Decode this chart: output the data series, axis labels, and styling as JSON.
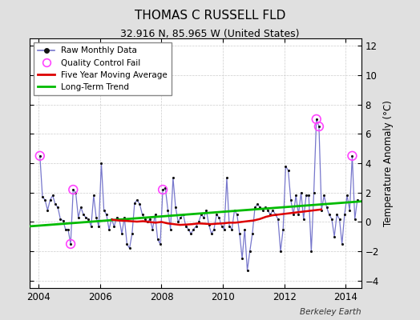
{
  "title": "THOMAS C RUSSELL FLD",
  "subtitle": "32.916 N, 85.965 W (United States)",
  "watermark": "Berkeley Earth",
  "ylabel": "Temperature Anomaly (°C)",
  "ylim": [
    -4.5,
    12.5
  ],
  "yticks": [
    -4,
    -2,
    0,
    2,
    4,
    6,
    8,
    10,
    12
  ],
  "xlim": [
    2003.7,
    2014.5
  ],
  "xticks": [
    2004,
    2006,
    2008,
    2010,
    2012,
    2014
  ],
  "bg_color": "#e0e0e0",
  "plot_bg": "#ffffff",
  "raw_color": "#7777cc",
  "dot_color": "#111111",
  "ma_color": "#dd0000",
  "trend_color": "#00bb00",
  "qc_color": "#ff44ff",
  "raw_data": [
    [
      2004.042,
      4.5
    ],
    [
      2004.125,
      1.7
    ],
    [
      2004.208,
      1.5
    ],
    [
      2004.292,
      0.8
    ],
    [
      2004.375,
      1.5
    ],
    [
      2004.458,
      1.8
    ],
    [
      2004.542,
      1.2
    ],
    [
      2004.625,
      1.0
    ],
    [
      2004.708,
      0.2
    ],
    [
      2004.792,
      0.1
    ],
    [
      2004.875,
      -0.5
    ],
    [
      2004.958,
      -0.5
    ],
    [
      2005.042,
      -1.5
    ],
    [
      2005.125,
      2.2
    ],
    [
      2005.208,
      2.0
    ],
    [
      2005.292,
      0.3
    ],
    [
      2005.375,
      1.0
    ],
    [
      2005.458,
      0.5
    ],
    [
      2005.542,
      0.3
    ],
    [
      2005.625,
      0.2
    ],
    [
      2005.708,
      -0.3
    ],
    [
      2005.792,
      1.8
    ],
    [
      2005.875,
      0.3
    ],
    [
      2005.958,
      -0.3
    ],
    [
      2006.042,
      4.0
    ],
    [
      2006.125,
      0.8
    ],
    [
      2006.208,
      0.5
    ],
    [
      2006.292,
      -0.5
    ],
    [
      2006.375,
      0.2
    ],
    [
      2006.458,
      -0.3
    ],
    [
      2006.542,
      0.3
    ],
    [
      2006.625,
      0.2
    ],
    [
      2006.708,
      -0.8
    ],
    [
      2006.792,
      0.3
    ],
    [
      2006.875,
      -1.5
    ],
    [
      2006.958,
      -1.8
    ],
    [
      2007.042,
      -0.8
    ],
    [
      2007.125,
      1.3
    ],
    [
      2007.208,
      1.5
    ],
    [
      2007.292,
      1.2
    ],
    [
      2007.375,
      0.5
    ],
    [
      2007.458,
      0.2
    ],
    [
      2007.542,
      0.0
    ],
    [
      2007.625,
      0.2
    ],
    [
      2007.708,
      -0.5
    ],
    [
      2007.792,
      0.5
    ],
    [
      2007.875,
      -1.2
    ],
    [
      2007.958,
      -1.5
    ],
    [
      2008.042,
      2.2
    ],
    [
      2008.125,
      2.3
    ],
    [
      2008.208,
      0.8
    ],
    [
      2008.292,
      -0.5
    ],
    [
      2008.375,
      3.0
    ],
    [
      2008.458,
      1.0
    ],
    [
      2008.542,
      0.0
    ],
    [
      2008.625,
      0.3
    ],
    [
      2008.708,
      0.5
    ],
    [
      2008.792,
      -0.3
    ],
    [
      2008.875,
      -0.5
    ],
    [
      2008.958,
      -0.8
    ],
    [
      2009.042,
      -0.5
    ],
    [
      2009.125,
      -0.3
    ],
    [
      2009.208,
      0.0
    ],
    [
      2009.292,
      0.5
    ],
    [
      2009.375,
      0.3
    ],
    [
      2009.458,
      0.8
    ],
    [
      2009.542,
      -0.2
    ],
    [
      2009.625,
      -0.8
    ],
    [
      2009.708,
      -0.5
    ],
    [
      2009.792,
      0.5
    ],
    [
      2009.875,
      0.3
    ],
    [
      2009.958,
      -0.3
    ],
    [
      2010.042,
      -0.5
    ],
    [
      2010.125,
      3.0
    ],
    [
      2010.208,
      -0.3
    ],
    [
      2010.292,
      -0.5
    ],
    [
      2010.375,
      0.8
    ],
    [
      2010.458,
      0.5
    ],
    [
      2010.542,
      -0.8
    ],
    [
      2010.625,
      -2.5
    ],
    [
      2010.708,
      -0.5
    ],
    [
      2010.792,
      -3.3
    ],
    [
      2010.875,
      -2.0
    ],
    [
      2010.958,
      -0.8
    ],
    [
      2011.042,
      1.0
    ],
    [
      2011.125,
      1.2
    ],
    [
      2011.208,
      1.0
    ],
    [
      2011.292,
      0.8
    ],
    [
      2011.375,
      1.0
    ],
    [
      2011.458,
      0.8
    ],
    [
      2011.542,
      0.5
    ],
    [
      2011.625,
      0.8
    ],
    [
      2011.708,
      0.5
    ],
    [
      2011.792,
      0.2
    ],
    [
      2011.875,
      -2.0
    ],
    [
      2011.958,
      -0.5
    ],
    [
      2012.042,
      3.8
    ],
    [
      2012.125,
      3.5
    ],
    [
      2012.208,
      1.5
    ],
    [
      2012.292,
      0.5
    ],
    [
      2012.375,
      1.8
    ],
    [
      2012.458,
      0.5
    ],
    [
      2012.542,
      2.0
    ],
    [
      2012.625,
      0.2
    ],
    [
      2012.708,
      1.8
    ],
    [
      2012.792,
      1.8
    ],
    [
      2012.875,
      -2.0
    ],
    [
      2012.958,
      2.0
    ],
    [
      2013.042,
      7.0
    ],
    [
      2013.125,
      6.5
    ],
    [
      2013.208,
      0.8
    ],
    [
      2013.292,
      1.8
    ],
    [
      2013.375,
      1.0
    ],
    [
      2013.458,
      0.5
    ],
    [
      2013.542,
      0.2
    ],
    [
      2013.625,
      -1.0
    ],
    [
      2013.708,
      0.5
    ],
    [
      2013.792,
      0.2
    ],
    [
      2013.875,
      -1.5
    ],
    [
      2013.958,
      0.5
    ],
    [
      2014.042,
      1.8
    ],
    [
      2014.125,
      0.8
    ],
    [
      2014.208,
      4.5
    ],
    [
      2014.292,
      0.2
    ],
    [
      2014.375,
      1.5
    ]
  ],
  "qc_fails": [
    [
      2004.042,
      4.5
    ],
    [
      2005.042,
      -1.5
    ],
    [
      2005.125,
      2.2
    ],
    [
      2008.042,
      2.2
    ],
    [
      2013.042,
      7.0
    ],
    [
      2013.125,
      6.5
    ],
    [
      2014.208,
      4.5
    ]
  ],
  "moving_avg": [
    [
      2006.4,
      0.15
    ],
    [
      2006.6,
      0.1
    ],
    [
      2006.8,
      0.08
    ],
    [
      2007.0,
      0.05
    ],
    [
      2007.2,
      0.02
    ],
    [
      2007.4,
      0.05
    ],
    [
      2007.6,
      0.0
    ],
    [
      2007.8,
      -0.05
    ],
    [
      2008.0,
      0.0
    ],
    [
      2008.2,
      -0.1
    ],
    [
      2008.4,
      -0.15
    ],
    [
      2008.6,
      -0.2
    ],
    [
      2008.8,
      -0.18
    ],
    [
      2009.0,
      -0.15
    ],
    [
      2009.2,
      -0.1
    ],
    [
      2009.4,
      -0.12
    ],
    [
      2009.6,
      -0.15
    ],
    [
      2009.8,
      -0.12
    ],
    [
      2010.0,
      -0.1
    ],
    [
      2010.2,
      -0.05
    ],
    [
      2010.4,
      -0.05
    ],
    [
      2010.6,
      0.0
    ],
    [
      2010.8,
      0.05
    ],
    [
      2011.0,
      0.1
    ],
    [
      2011.2,
      0.2
    ],
    [
      2011.4,
      0.35
    ],
    [
      2011.6,
      0.45
    ],
    [
      2011.8,
      0.5
    ],
    [
      2012.0,
      0.55
    ],
    [
      2012.2,
      0.6
    ],
    [
      2012.4,
      0.65
    ],
    [
      2012.6,
      0.7
    ],
    [
      2012.8,
      0.75
    ],
    [
      2013.0,
      0.8
    ],
    [
      2013.2,
      0.85
    ]
  ],
  "trend_x": [
    2003.7,
    2014.5
  ],
  "trend_y": [
    -0.3,
    1.4
  ]
}
